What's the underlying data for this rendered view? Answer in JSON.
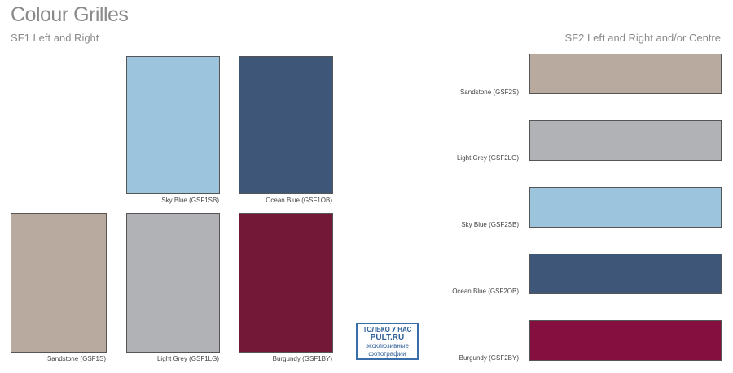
{
  "title": "Colour Grilles",
  "sf1": {
    "heading": "SF1 Left and Right",
    "swatches": [
      {
        "label": "Sky Blue (GSF1SB)",
        "color": "#9cc4dc"
      },
      {
        "label": "Ocean Blue (GSF1OB)",
        "color": "#3e5677"
      },
      {
        "label": "Sandstone (GSF1S)",
        "color": "#b9aaa0"
      },
      {
        "label": "Light Grey (GSF1LG)",
        "color": "#b1b2b5"
      },
      {
        "label": "Burgundy (GSF1BY)",
        "color": "#741838"
      }
    ]
  },
  "sf2": {
    "heading": "SF2 Left and Right and/or Centre",
    "swatches": [
      {
        "label": "Sandstone (GSF2S)",
        "color": "#b9aaa0"
      },
      {
        "label": "Light Grey (GSF2LG)",
        "color": "#b1b2b5"
      },
      {
        "label": "Sky Blue (GSF2SB)",
        "color": "#9cc4dc"
      },
      {
        "label": "Ocean Blue (GSF2OB)",
        "color": "#3e5677"
      },
      {
        "label": "Burgundy (GSF2BY)",
        "color": "#850f3e"
      }
    ]
  },
  "stamp": {
    "line1": "ТОЛЬКО У НАС",
    "line2": "PULT.RU",
    "line3": "эксклюзивные",
    "line4": "фотографии"
  }
}
